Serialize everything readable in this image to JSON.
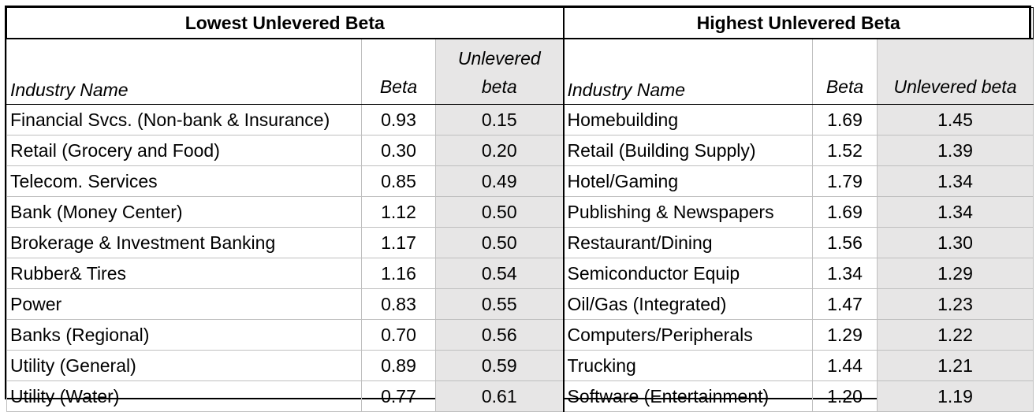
{
  "left": {
    "title": "Lowest Unlevered Beta",
    "headers": {
      "industry": "Industry Name",
      "beta": "Beta",
      "unlevered": "Unlevered beta"
    },
    "rows": [
      {
        "name": "Financial Svcs. (Non-bank & Insurance)",
        "beta": "0.93",
        "unlevered": "0.15"
      },
      {
        "name": "Retail (Grocery and Food)",
        "beta": "0.30",
        "unlevered": "0.20"
      },
      {
        "name": "Telecom. Services",
        "beta": "0.85",
        "unlevered": "0.49"
      },
      {
        "name": "Bank (Money Center)",
        "beta": "1.12",
        "unlevered": "0.50"
      },
      {
        "name": "Brokerage & Investment Banking",
        "beta": "1.17",
        "unlevered": "0.50"
      },
      {
        "name": "Rubber& Tires",
        "beta": "1.16",
        "unlevered": "0.54"
      },
      {
        "name": "Power",
        "beta": "0.83",
        "unlevered": "0.55"
      },
      {
        "name": "Banks (Regional)",
        "beta": "0.70",
        "unlevered": "0.56"
      },
      {
        "name": "Utility (General)",
        "beta": "0.89",
        "unlevered": "0.59"
      },
      {
        "name": "Utility (Water)",
        "beta": "0.77",
        "unlevered": "0.61"
      }
    ]
  },
  "right": {
    "title": "Highest Unlevered Beta",
    "headers": {
      "industry": "Industry Name",
      "beta": "Beta",
      "unlevered": "Unlevered beta"
    },
    "rows": [
      {
        "name": "Homebuilding",
        "beta": "1.69",
        "unlevered": "1.45"
      },
      {
        "name": "Retail (Building Supply)",
        "beta": "1.52",
        "unlevered": "1.39"
      },
      {
        "name": "Hotel/Gaming",
        "beta": "1.79",
        "unlevered": "1.34"
      },
      {
        "name": "Publishing & Newspapers",
        "beta": "1.69",
        "unlevered": "1.34"
      },
      {
        "name": "Restaurant/Dining",
        "beta": "1.56",
        "unlevered": "1.30"
      },
      {
        "name": "Semiconductor Equip",
        "beta": "1.34",
        "unlevered": "1.29"
      },
      {
        "name": "Oil/Gas (Integrated)",
        "beta": "1.47",
        "unlevered": "1.23"
      },
      {
        "name": "Computers/Peripherals",
        "beta": "1.29",
        "unlevered": "1.22"
      },
      {
        "name": "Trucking",
        "beta": "1.44",
        "unlevered": "1.21"
      },
      {
        "name": "Software (Entertainment)",
        "beta": "1.20",
        "unlevered": "1.19"
      }
    ]
  },
  "colors": {
    "shade": "#e7e6e6",
    "grid": "#bfbfbf",
    "border": "#000000"
  }
}
